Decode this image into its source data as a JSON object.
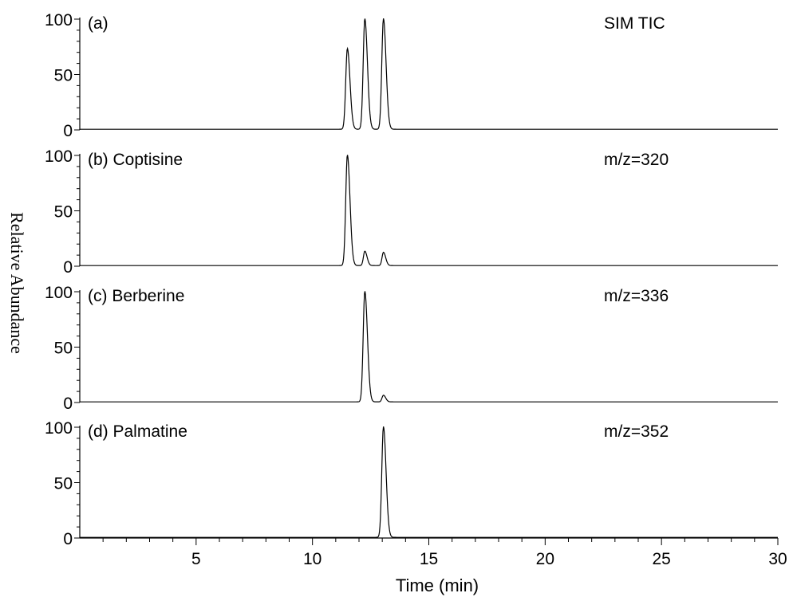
{
  "chart_data": [
    {
      "type": "line",
      "panel_label": "(a)",
      "channel": "SIM TIC",
      "xlim": [
        0,
        30
      ],
      "ylim": [
        0,
        100
      ],
      "peaks": [
        {
          "x": 11.5,
          "y": 73
        },
        {
          "x": 12.25,
          "y": 100
        },
        {
          "x": 13.05,
          "y": 100
        }
      ]
    },
    {
      "type": "line",
      "panel_label": "(b) Coptisine",
      "channel": "m/z=320",
      "xlim": [
        0,
        30
      ],
      "ylim": [
        0,
        100
      ],
      "peaks": [
        {
          "x": 11.5,
          "y": 100
        },
        {
          "x": 12.25,
          "y": 13
        },
        {
          "x": 13.05,
          "y": 12
        }
      ]
    },
    {
      "type": "line",
      "panel_label": "(c) Berberine",
      "channel": "m/z=336",
      "xlim": [
        0,
        30
      ],
      "ylim": [
        0,
        100
      ],
      "peaks": [
        {
          "x": 12.25,
          "y": 100
        },
        {
          "x": 13.05,
          "y": 6
        }
      ]
    },
    {
      "type": "line",
      "panel_label": "(d) Palmatine",
      "channel": "m/z=352",
      "xlim": [
        0,
        30
      ],
      "ylim": [
        0,
        100
      ],
      "peaks": [
        {
          "x": 13.05,
          "y": 100
        }
      ]
    }
  ],
  "axes": {
    "ylabel": "Relative Abundance",
    "xlabel": "Time (min)",
    "xticks": [
      5,
      10,
      15,
      20,
      25,
      30
    ],
    "yticks": [
      0,
      50,
      100
    ]
  }
}
